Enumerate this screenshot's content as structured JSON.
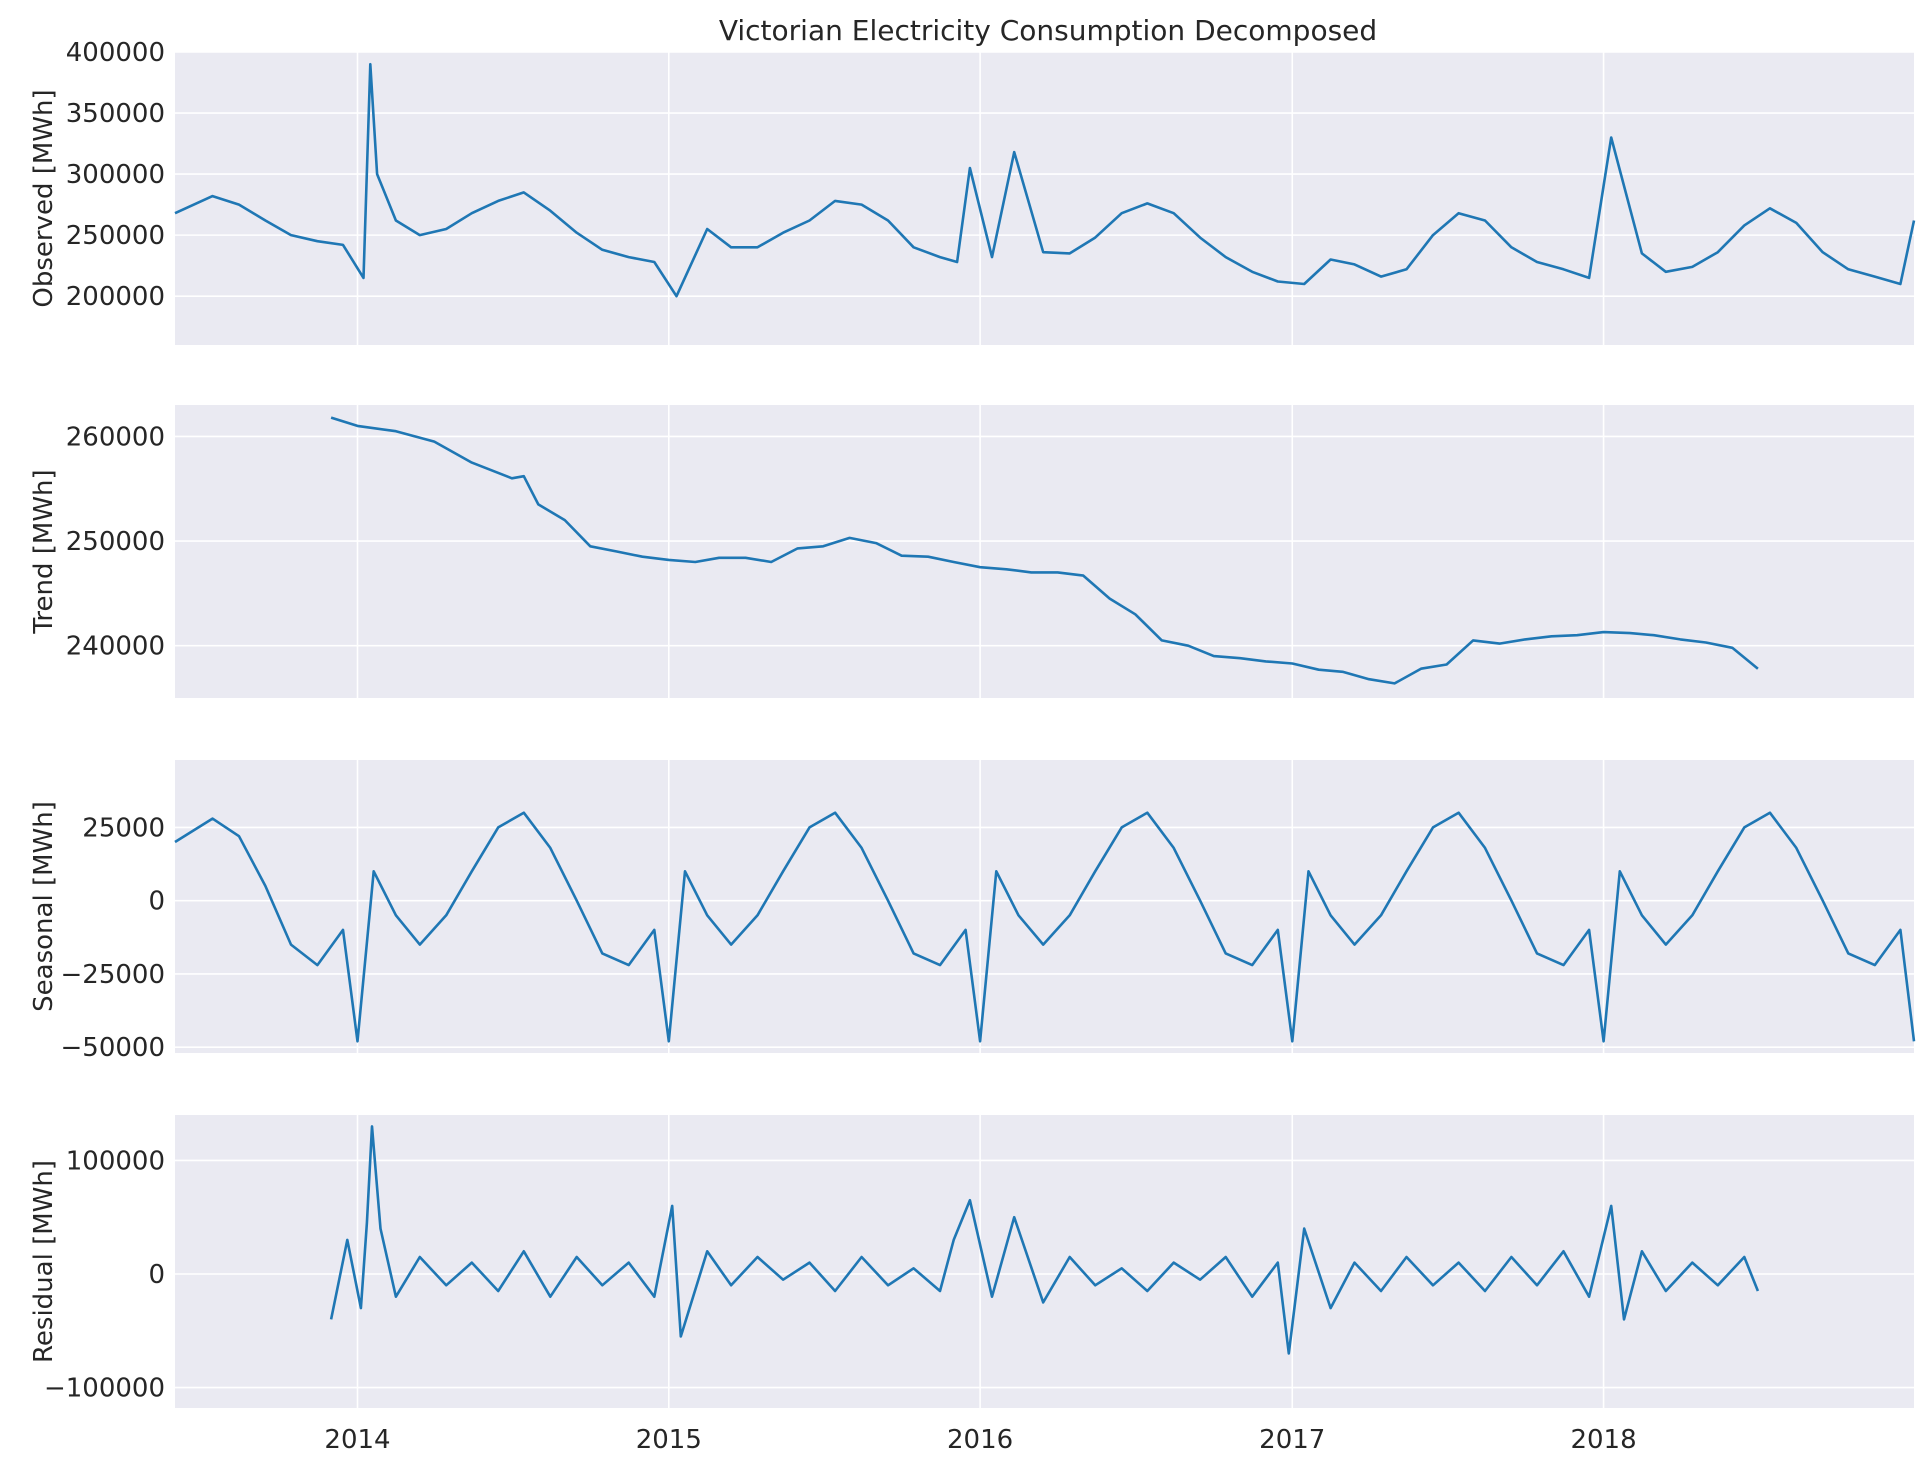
{
  "chart_data": {
    "type": "line",
    "title": "Victorian Electricity Consumption Decomposed",
    "style": {
      "background": "#EAEAF2",
      "grid": "#FFFFFF",
      "line": "#1F77B4",
      "grid_on": true
    },
    "x_range": [
      "2013-06-01",
      "2018-12-31"
    ],
    "x_ticks": [
      {
        "label": "2014",
        "date": "2014-01-01"
      },
      {
        "label": "2015",
        "date": "2015-01-01"
      },
      {
        "label": "2016",
        "date": "2016-01-01"
      },
      {
        "label": "2017",
        "date": "2017-01-01"
      },
      {
        "label": "2018",
        "date": "2018-01-01"
      }
    ],
    "panels": [
      {
        "id": "observed",
        "ylabel": "Observed [MWh]",
        "ylim": [
          160000,
          400000
        ],
        "yticks": [
          200000,
          250000,
          300000,
          350000,
          400000
        ],
        "yticklabels": [
          "200000",
          "250000",
          "300000",
          "350000",
          "400000"
        ],
        "series": {
          "x": [
            "2013-06-01",
            "2013-07-15",
            "2013-08-15",
            "2013-09-15",
            "2013-10-15",
            "2013-11-15",
            "2013-12-15",
            "2014-01-08",
            "2014-01-16",
            "2014-01-24",
            "2014-02-15",
            "2014-03-15",
            "2014-04-15",
            "2014-05-15",
            "2014-06-15",
            "2014-07-15",
            "2014-08-15",
            "2014-09-15",
            "2014-10-15",
            "2014-11-15",
            "2014-12-15",
            "2015-01-10",
            "2015-02-15",
            "2015-03-15",
            "2015-04-15",
            "2015-05-15",
            "2015-06-15",
            "2015-07-15",
            "2015-08-15",
            "2015-09-15",
            "2015-10-15",
            "2015-11-15",
            "2015-12-05",
            "2015-12-20",
            "2016-01-15",
            "2016-02-10",
            "2016-03-15",
            "2016-04-15",
            "2016-05-15",
            "2016-06-15",
            "2016-07-15",
            "2016-08-15",
            "2016-09-15",
            "2016-10-15",
            "2016-11-15",
            "2016-12-15",
            "2017-01-15",
            "2017-02-15",
            "2017-03-15",
            "2017-04-15",
            "2017-05-15",
            "2017-06-15",
            "2017-07-15",
            "2017-08-15",
            "2017-09-15",
            "2017-10-15",
            "2017-11-15",
            "2017-12-15",
            "2018-01-10",
            "2018-02-15",
            "2018-03-15",
            "2018-04-15",
            "2018-05-15",
            "2018-06-15",
            "2018-07-15",
            "2018-08-15",
            "2018-09-15",
            "2018-10-15",
            "2018-11-15",
            "2018-12-15",
            "2018-12-31"
          ],
          "y": [
            268000,
            282000,
            275000,
            262000,
            250000,
            245000,
            242000,
            215000,
            390000,
            300000,
            262000,
            250000,
            255000,
            268000,
            278000,
            285000,
            270000,
            252000,
            238000,
            232000,
            228000,
            200000,
            255000,
            240000,
            240000,
            252000,
            262000,
            278000,
            275000,
            262000,
            240000,
            232000,
            228000,
            305000,
            232000,
            318000,
            236000,
            235000,
            248000,
            268000,
            276000,
            268000,
            248000,
            232000,
            220000,
            212000,
            210000,
            230000,
            226000,
            216000,
            222000,
            250000,
            268000,
            262000,
            240000,
            228000,
            222000,
            215000,
            330000,
            235000,
            220000,
            224000,
            236000,
            258000,
            272000,
            260000,
            236000,
            222000,
            216000,
            210000,
            262000
          ]
        }
      },
      {
        "id": "trend",
        "ylabel": "Trend [MWh]",
        "ylim": [
          235000,
          263000
        ],
        "yticks": [
          240000,
          250000,
          260000
        ],
        "yticklabels": [
          "240000",
          "250000",
          "260000"
        ],
        "series": {
          "x": [
            "2013-12-01",
            "2014-01-01",
            "2014-02-15",
            "2014-04-01",
            "2014-05-15",
            "2014-07-01",
            "2014-07-15",
            "2014-08-01",
            "2014-09-01",
            "2014-10-01",
            "2014-11-01",
            "2014-12-01",
            "2015-01-01",
            "2015-02-01",
            "2015-03-01",
            "2015-04-01",
            "2015-05-01",
            "2015-06-01",
            "2015-07-01",
            "2015-08-01",
            "2015-09-01",
            "2015-10-01",
            "2015-11-01",
            "2015-12-01",
            "2016-01-01",
            "2016-02-01",
            "2016-03-01",
            "2016-04-01",
            "2016-05-01",
            "2016-06-01",
            "2016-07-01",
            "2016-08-01",
            "2016-09-01",
            "2016-10-01",
            "2016-11-01",
            "2016-12-01",
            "2017-01-01",
            "2017-02-01",
            "2017-03-01",
            "2017-04-01",
            "2017-05-01",
            "2017-06-01",
            "2017-07-01",
            "2017-08-01",
            "2017-09-01",
            "2017-10-01",
            "2017-11-01",
            "2017-12-01",
            "2018-01-01",
            "2018-02-01",
            "2018-03-01",
            "2018-04-01",
            "2018-05-01",
            "2018-06-01",
            "2018-07-01"
          ],
          "y": [
            261800,
            261000,
            260500,
            259500,
            257500,
            256000,
            256200,
            253500,
            252000,
            249500,
            249000,
            248500,
            248200,
            248000,
            248400,
            248400,
            248000,
            249300,
            249500,
            250300,
            249800,
            248600,
            248500,
            248000,
            247500,
            247300,
            247000,
            247000,
            246700,
            244500,
            243000,
            240500,
            240000,
            239000,
            238800,
            238500,
            238300,
            237700,
            237500,
            236800,
            236400,
            237800,
            238200,
            240500,
            240200,
            240600,
            240900,
            241000,
            241300,
            241200,
            241000,
            240600,
            240300,
            239800,
            237800
          ]
        }
      },
      {
        "id": "seasonal",
        "ylabel": "Seasonal [MWh]",
        "ylim": [
          -52000,
          48000
        ],
        "yticks": [
          -50000,
          -25000,
          0,
          25000
        ],
        "yticklabels": [
          "−50000",
          "−25000",
          "0",
          "25000"
        ],
        "series": {
          "x": [
            "2013-06-01",
            "2013-07-15",
            "2013-08-15",
            "2013-09-15",
            "2013-10-15",
            "2013-11-15",
            "2013-12-15",
            "2014-01-01",
            "2014-01-20",
            "2014-02-15",
            "2014-03-15",
            "2014-04-15",
            "2014-05-15",
            "2014-06-15",
            "2014-07-15",
            "2014-08-15",
            "2014-09-15",
            "2014-10-15",
            "2014-11-15",
            "2014-12-15",
            "2015-01-01",
            "2015-01-20",
            "2015-02-15",
            "2015-03-15",
            "2015-04-15",
            "2015-05-15",
            "2015-06-15",
            "2015-07-15",
            "2015-08-15",
            "2015-09-15",
            "2015-10-15",
            "2015-11-15",
            "2015-12-15",
            "2016-01-01",
            "2016-01-20",
            "2016-02-15",
            "2016-03-15",
            "2016-04-15",
            "2016-05-15",
            "2016-06-15",
            "2016-07-15",
            "2016-08-15",
            "2016-09-15",
            "2016-10-15",
            "2016-11-15",
            "2016-12-15",
            "2017-01-01",
            "2017-01-20",
            "2017-02-15",
            "2017-03-15",
            "2017-04-15",
            "2017-05-15",
            "2017-06-15",
            "2017-07-15",
            "2017-08-15",
            "2017-09-15",
            "2017-10-15",
            "2017-11-15",
            "2017-12-15",
            "2018-01-01",
            "2018-01-20",
            "2018-02-15",
            "2018-03-15",
            "2018-04-15",
            "2018-05-15",
            "2018-06-15",
            "2018-07-15",
            "2018-08-15",
            "2018-09-15",
            "2018-10-15",
            "2018-11-15",
            "2018-12-15",
            "2018-12-31"
          ],
          "y": [
            20000,
            28000,
            22000,
            5000,
            -15000,
            -22000,
            -10000,
            -48000,
            10000,
            -5000,
            -15000,
            -5000,
            10000,
            25000,
            30000,
            18000,
            0,
            -18000,
            -22000,
            -10000,
            -48000,
            10000,
            -5000,
            -15000,
            -5000,
            10000,
            25000,
            30000,
            18000,
            0,
            -18000,
            -22000,
            -10000,
            -48000,
            10000,
            -5000,
            -15000,
            -5000,
            10000,
            25000,
            30000,
            18000,
            0,
            -18000,
            -22000,
            -10000,
            -48000,
            10000,
            -5000,
            -15000,
            -5000,
            10000,
            25000,
            30000,
            18000,
            0,
            -18000,
            -22000,
            -10000,
            -48000,
            10000,
            -5000,
            -15000,
            -5000,
            10000,
            25000,
            30000,
            18000,
            0,
            -18000,
            -22000,
            -10000,
            -48000
          ]
        }
      },
      {
        "id": "residual",
        "ylabel": "Residual [MWh]",
        "ylim": [
          -118000,
          140000
        ],
        "yticks": [
          -100000,
          0,
          100000
        ],
        "yticklabels": [
          "−100000",
          "0",
          "100000"
        ],
        "series": {
          "x": [
            "2013-12-01",
            "2013-12-20",
            "2014-01-05",
            "2014-01-12",
            "2014-01-18",
            "2014-01-28",
            "2014-02-15",
            "2014-03-15",
            "2014-04-15",
            "2014-05-15",
            "2014-06-15",
            "2014-07-15",
            "2014-08-15",
            "2014-09-15",
            "2014-10-15",
            "2014-11-15",
            "2014-12-15",
            "2015-01-05",
            "2015-01-15",
            "2015-02-15",
            "2015-03-15",
            "2015-04-15",
            "2015-05-15",
            "2015-06-15",
            "2015-07-15",
            "2015-08-15",
            "2015-09-15",
            "2015-10-15",
            "2015-11-15",
            "2015-12-01",
            "2015-12-20",
            "2016-01-15",
            "2016-02-10",
            "2016-03-15",
            "2016-04-15",
            "2016-05-15",
            "2016-06-15",
            "2016-07-15",
            "2016-08-15",
            "2016-09-15",
            "2016-10-15",
            "2016-11-15",
            "2016-12-15",
            "2016-12-28",
            "2017-01-15",
            "2017-02-15",
            "2017-03-15",
            "2017-04-15",
            "2017-05-15",
            "2017-06-15",
            "2017-07-15",
            "2017-08-15",
            "2017-09-15",
            "2017-10-15",
            "2017-11-15",
            "2017-12-15",
            "2018-01-10",
            "2018-01-25",
            "2018-02-15",
            "2018-03-15",
            "2018-04-15",
            "2018-05-15",
            "2018-06-15",
            "2018-07-01"
          ],
          "y": [
            -40000,
            30000,
            -30000,
            45000,
            130000,
            40000,
            -20000,
            15000,
            -10000,
            10000,
            -15000,
            20000,
            -20000,
            15000,
            -10000,
            10000,
            -20000,
            60000,
            -55000,
            20000,
            -10000,
            15000,
            -5000,
            10000,
            -15000,
            15000,
            -10000,
            5000,
            -15000,
            30000,
            65000,
            -20000,
            50000,
            -25000,
            15000,
            -10000,
            5000,
            -15000,
            10000,
            -5000,
            15000,
            -20000,
            10000,
            -70000,
            40000,
            -30000,
            10000,
            -15000,
            15000,
            -10000,
            10000,
            -15000,
            15000,
            -10000,
            20000,
            -20000,
            60000,
            -40000,
            20000,
            -15000,
            10000,
            -10000,
            15000,
            -15000
          ]
        }
      }
    ]
  }
}
